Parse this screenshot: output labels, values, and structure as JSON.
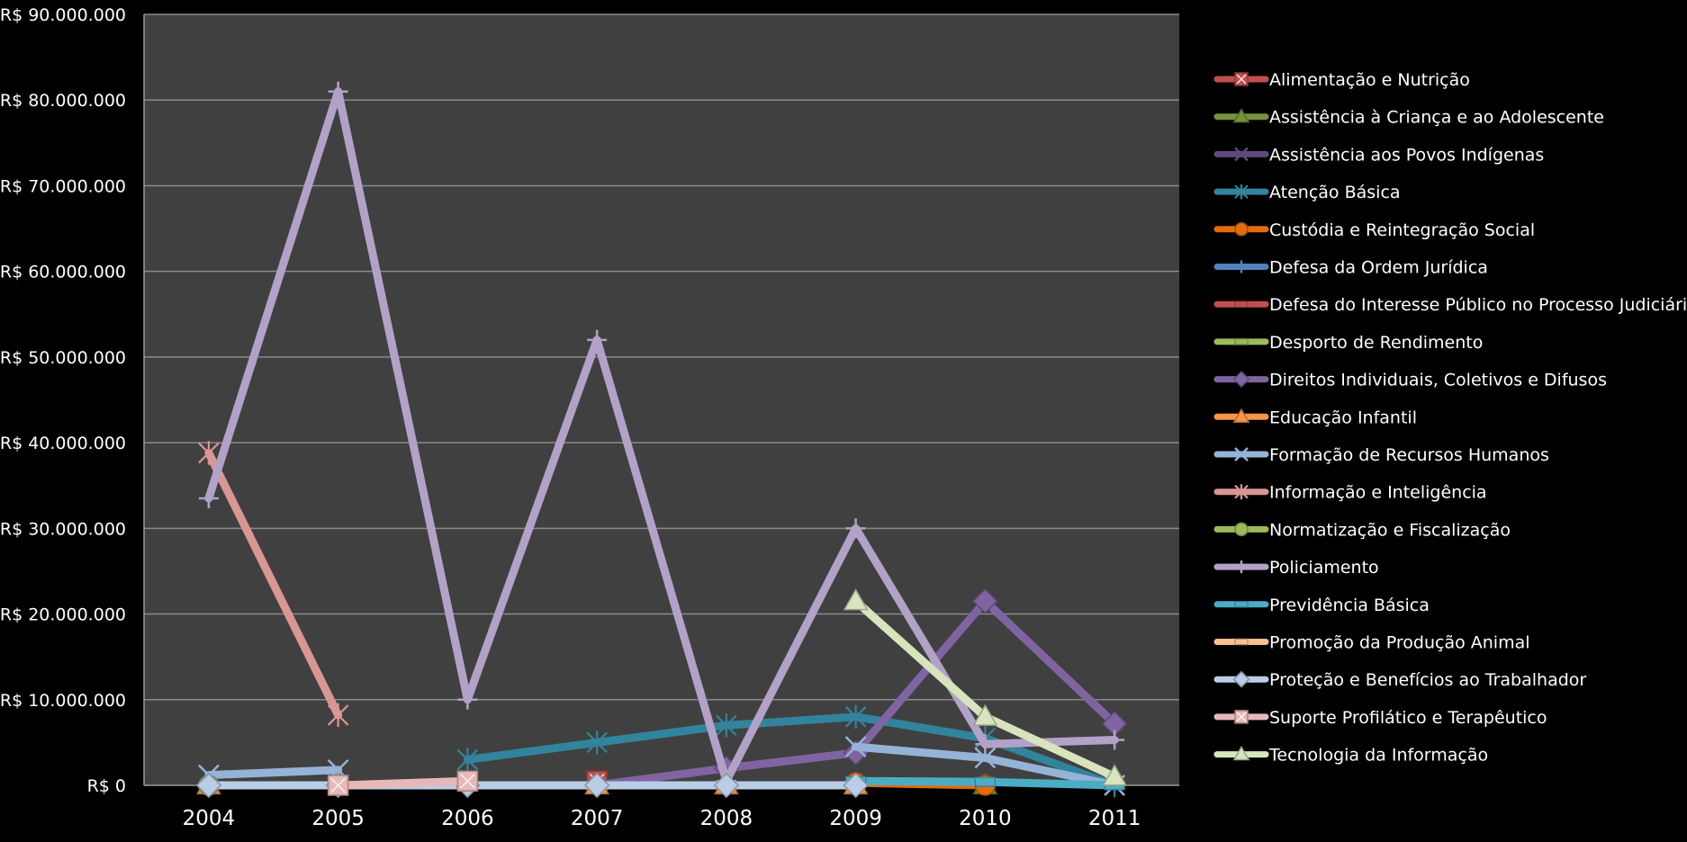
{
  "chart_data": {
    "type": "line",
    "title": "",
    "xlabel": "",
    "ylabel": "",
    "categories": [
      "2004",
      "2005",
      "2006",
      "2007",
      "2008",
      "2009",
      "2010",
      "2011"
    ],
    "ylim": [
      0,
      90000000
    ],
    "yticks": [
      0,
      10000000,
      20000000,
      30000000,
      40000000,
      50000000,
      60000000,
      70000000,
      80000000,
      90000000
    ],
    "ytick_labels": [
      "R$ 0",
      "R$ 10.000.000",
      "R$ 20.000.000",
      "R$ 30.000.000",
      "R$ 40.000.000",
      "R$ 50.000.000",
      "R$ 60.000.000",
      "R$ 70.000.000",
      "R$ 80.000.000",
      "R$ 90.000.000"
    ],
    "grid": true,
    "legend_position": "right",
    "plot_background": "#404040",
    "series": [
      {
        "name": "Alimentação e Nutrição",
        "color": "#C0504D",
        "marker": "square-x",
        "values": [
          null,
          null,
          null,
          500000,
          null,
          null,
          null,
          null
        ]
      },
      {
        "name": "Assistência à Criança e ao Adolescente",
        "color": "#77933C",
        "marker": "triangle",
        "values": [
          null,
          null,
          null,
          null,
          null,
          null,
          0,
          null
        ]
      },
      {
        "name": "Assistência aos Povos Indígenas",
        "color": "#604A7B",
        "marker": "x",
        "values": [
          null,
          null,
          null,
          null,
          null,
          null,
          null,
          null
        ]
      },
      {
        "name": "Atenção Básica",
        "color": "#31849B",
        "marker": "star",
        "values": [
          null,
          null,
          3000000,
          5000000,
          7000000,
          8000000,
          5500000,
          0
        ]
      },
      {
        "name": "Custódia e Reintegração Social",
        "color": "#E46C0A",
        "marker": "circle",
        "values": [
          null,
          null,
          null,
          null,
          null,
          300000,
          0,
          null
        ]
      },
      {
        "name": "Defesa da Ordem Jurídica",
        "color": "#4F81BD",
        "marker": "plus",
        "values": [
          null,
          null,
          null,
          null,
          null,
          null,
          null,
          null
        ]
      },
      {
        "name": "Defesa do Interesse Público no Processo Judiciário",
        "color": "#C0504D",
        "marker": "dash",
        "values": [
          null,
          null,
          null,
          null,
          null,
          null,
          null,
          null
        ]
      },
      {
        "name": "Desporto de Rendimento",
        "color": "#9BBB59",
        "marker": "dash",
        "values": [
          null,
          null,
          null,
          null,
          null,
          null,
          null,
          null
        ]
      },
      {
        "name": "Direitos Individuais, Coletivos e Difusos",
        "color": "#8064A2",
        "marker": "diamond",
        "values": [
          null,
          null,
          null,
          0,
          2000000,
          3800000,
          21500000,
          7200000
        ]
      },
      {
        "name": "Educação Infantil",
        "color": "#F79646",
        "marker": "triangle",
        "values": [
          0,
          null,
          null,
          0,
          0,
          0,
          null,
          null
        ]
      },
      {
        "name": "Formação de Recursos Humanos",
        "color": "#95B3D7",
        "marker": "x",
        "values": [
          1200000,
          1800000,
          null,
          null,
          null,
          4500000,
          3200000,
          0
        ]
      },
      {
        "name": "Informação e Inteligência",
        "color": "#D99694",
        "marker": "star",
        "values": [
          38800000,
          8200000,
          null,
          null,
          null,
          null,
          null,
          null
        ]
      },
      {
        "name": "Normatização e Fiscalização",
        "color": "#9BBB59",
        "marker": "circle",
        "values": [
          0,
          null,
          null,
          null,
          null,
          null,
          null,
          null
        ]
      },
      {
        "name": "Policiamento",
        "color": "#B3A2C7",
        "marker": "plus",
        "values": [
          33500000,
          81000000,
          10000000,
          52000000,
          500000,
          30000000,
          4800000,
          5300000
        ]
      },
      {
        "name": "Previdência Básica",
        "color": "#4BACC6",
        "marker": "dash",
        "values": [
          null,
          null,
          null,
          null,
          null,
          500000,
          400000,
          0
        ]
      },
      {
        "name": "Promoção da Produção Animal",
        "color": "#FAC090",
        "marker": "dash",
        "values": [
          null,
          null,
          null,
          null,
          null,
          null,
          null,
          null
        ]
      },
      {
        "name": "Proteção e Benefícios ao Trabalhador",
        "color": "#B9CDE5",
        "marker": "diamond",
        "values": [
          0,
          0,
          0,
          0,
          0,
          0,
          null,
          null
        ]
      },
      {
        "name": "Suporte Profilático e Terapêutico",
        "color": "#E6B9B8",
        "marker": "square-x",
        "values": [
          null,
          0,
          500000,
          null,
          null,
          null,
          null,
          null
        ]
      },
      {
        "name": "Tecnologia da Informação",
        "color": "#D7E4BD",
        "marker": "triangle",
        "values": [
          null,
          null,
          null,
          null,
          null,
          21500000,
          8000000,
          1000000
        ]
      }
    ]
  }
}
